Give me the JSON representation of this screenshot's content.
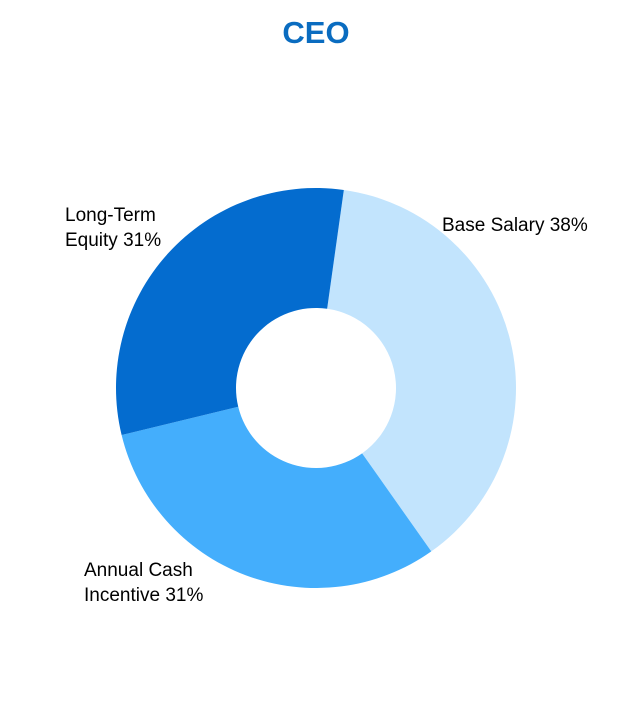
{
  "chart_data": {
    "type": "pie",
    "variant": "donut",
    "title": "CEO",
    "slices": [
      {
        "name": "Base Salary",
        "value": 38,
        "label_lines": [
          "Base Salary 38%"
        ],
        "color": "#c2e4fd"
      },
      {
        "name": "Annual Cash Incentive",
        "value": 31,
        "label_lines": [
          "Annual Cash",
          "Incentive 31%"
        ],
        "color": "#44aefc"
      },
      {
        "name": "Long-Term Equity",
        "value": 31,
        "label_lines": [
          "Long-Term",
          "Equity 31%"
        ],
        "color": "#046ccf"
      }
    ],
    "legend": "none"
  },
  "colors": {
    "title": "#0a6cc0",
    "background": "#ffffff"
  }
}
